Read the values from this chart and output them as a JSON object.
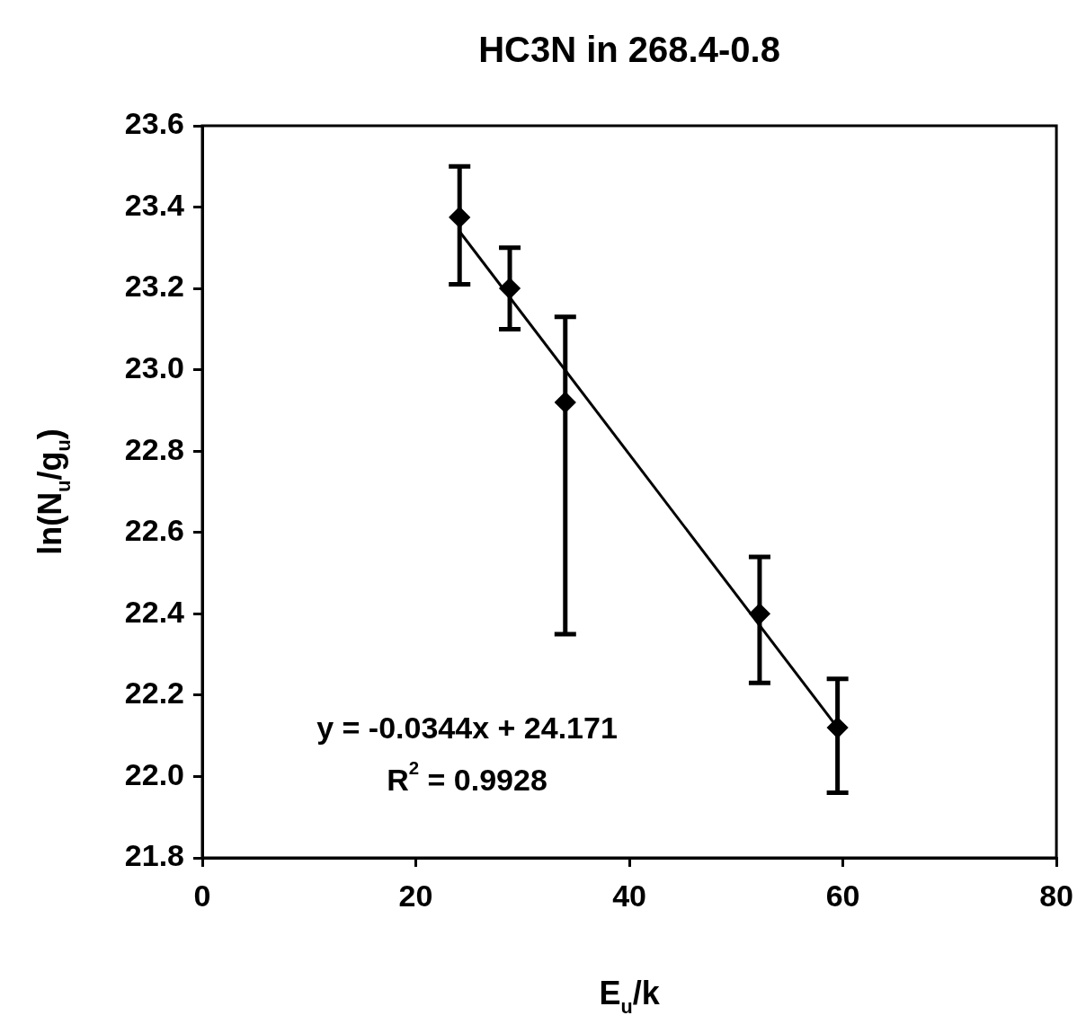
{
  "chart_data": {
    "type": "scatter",
    "title": "HC3N in 268.4-0.8",
    "xlabel": "E$_{u}$/k",
    "ylabel": "ln(N$_{u}$/g$_{u}$)",
    "x": [
      24.1,
      28.8,
      34.0,
      52.2,
      59.5
    ],
    "series": [
      {
        "color": "#000000",
        "values": [
          23.375,
          23.2,
          22.92,
          22.4,
          22.12
        ],
        "errors": [
          [
            23.21,
            23.5
          ],
          [
            23.1,
            23.3
          ],
          [
            22.35,
            23.13
          ],
          [
            22.23,
            22.54
          ],
          [
            21.96,
            22.24
          ]
        ]
      },
      {
        "type": "line",
        "color": "#000000",
        "x": [
          24.1,
          59.5
        ],
        "values": [
          23.34,
          22.12
        ],
        "marker": "none"
      }
    ],
    "marker": "diamond",
    "grid": false,
    "legend": false,
    "xlim": [
      0,
      80
    ],
    "xticks": [
      0,
      20,
      40,
      60,
      80
    ],
    "ylim": [
      21.8,
      23.6
    ],
    "yticks": [
      21.8,
      {
        "value": 22,
        "label": "22.0"
      },
      22.2,
      22.4,
      22.6,
      22.8,
      {
        "value": 23,
        "label": "23.0"
      },
      23.2,
      23.4,
      23.6
    ],
    "annotations": [
      "y = -0.0344x + 24.171",
      "R$^{2}$ = 0.9928"
    ]
  }
}
